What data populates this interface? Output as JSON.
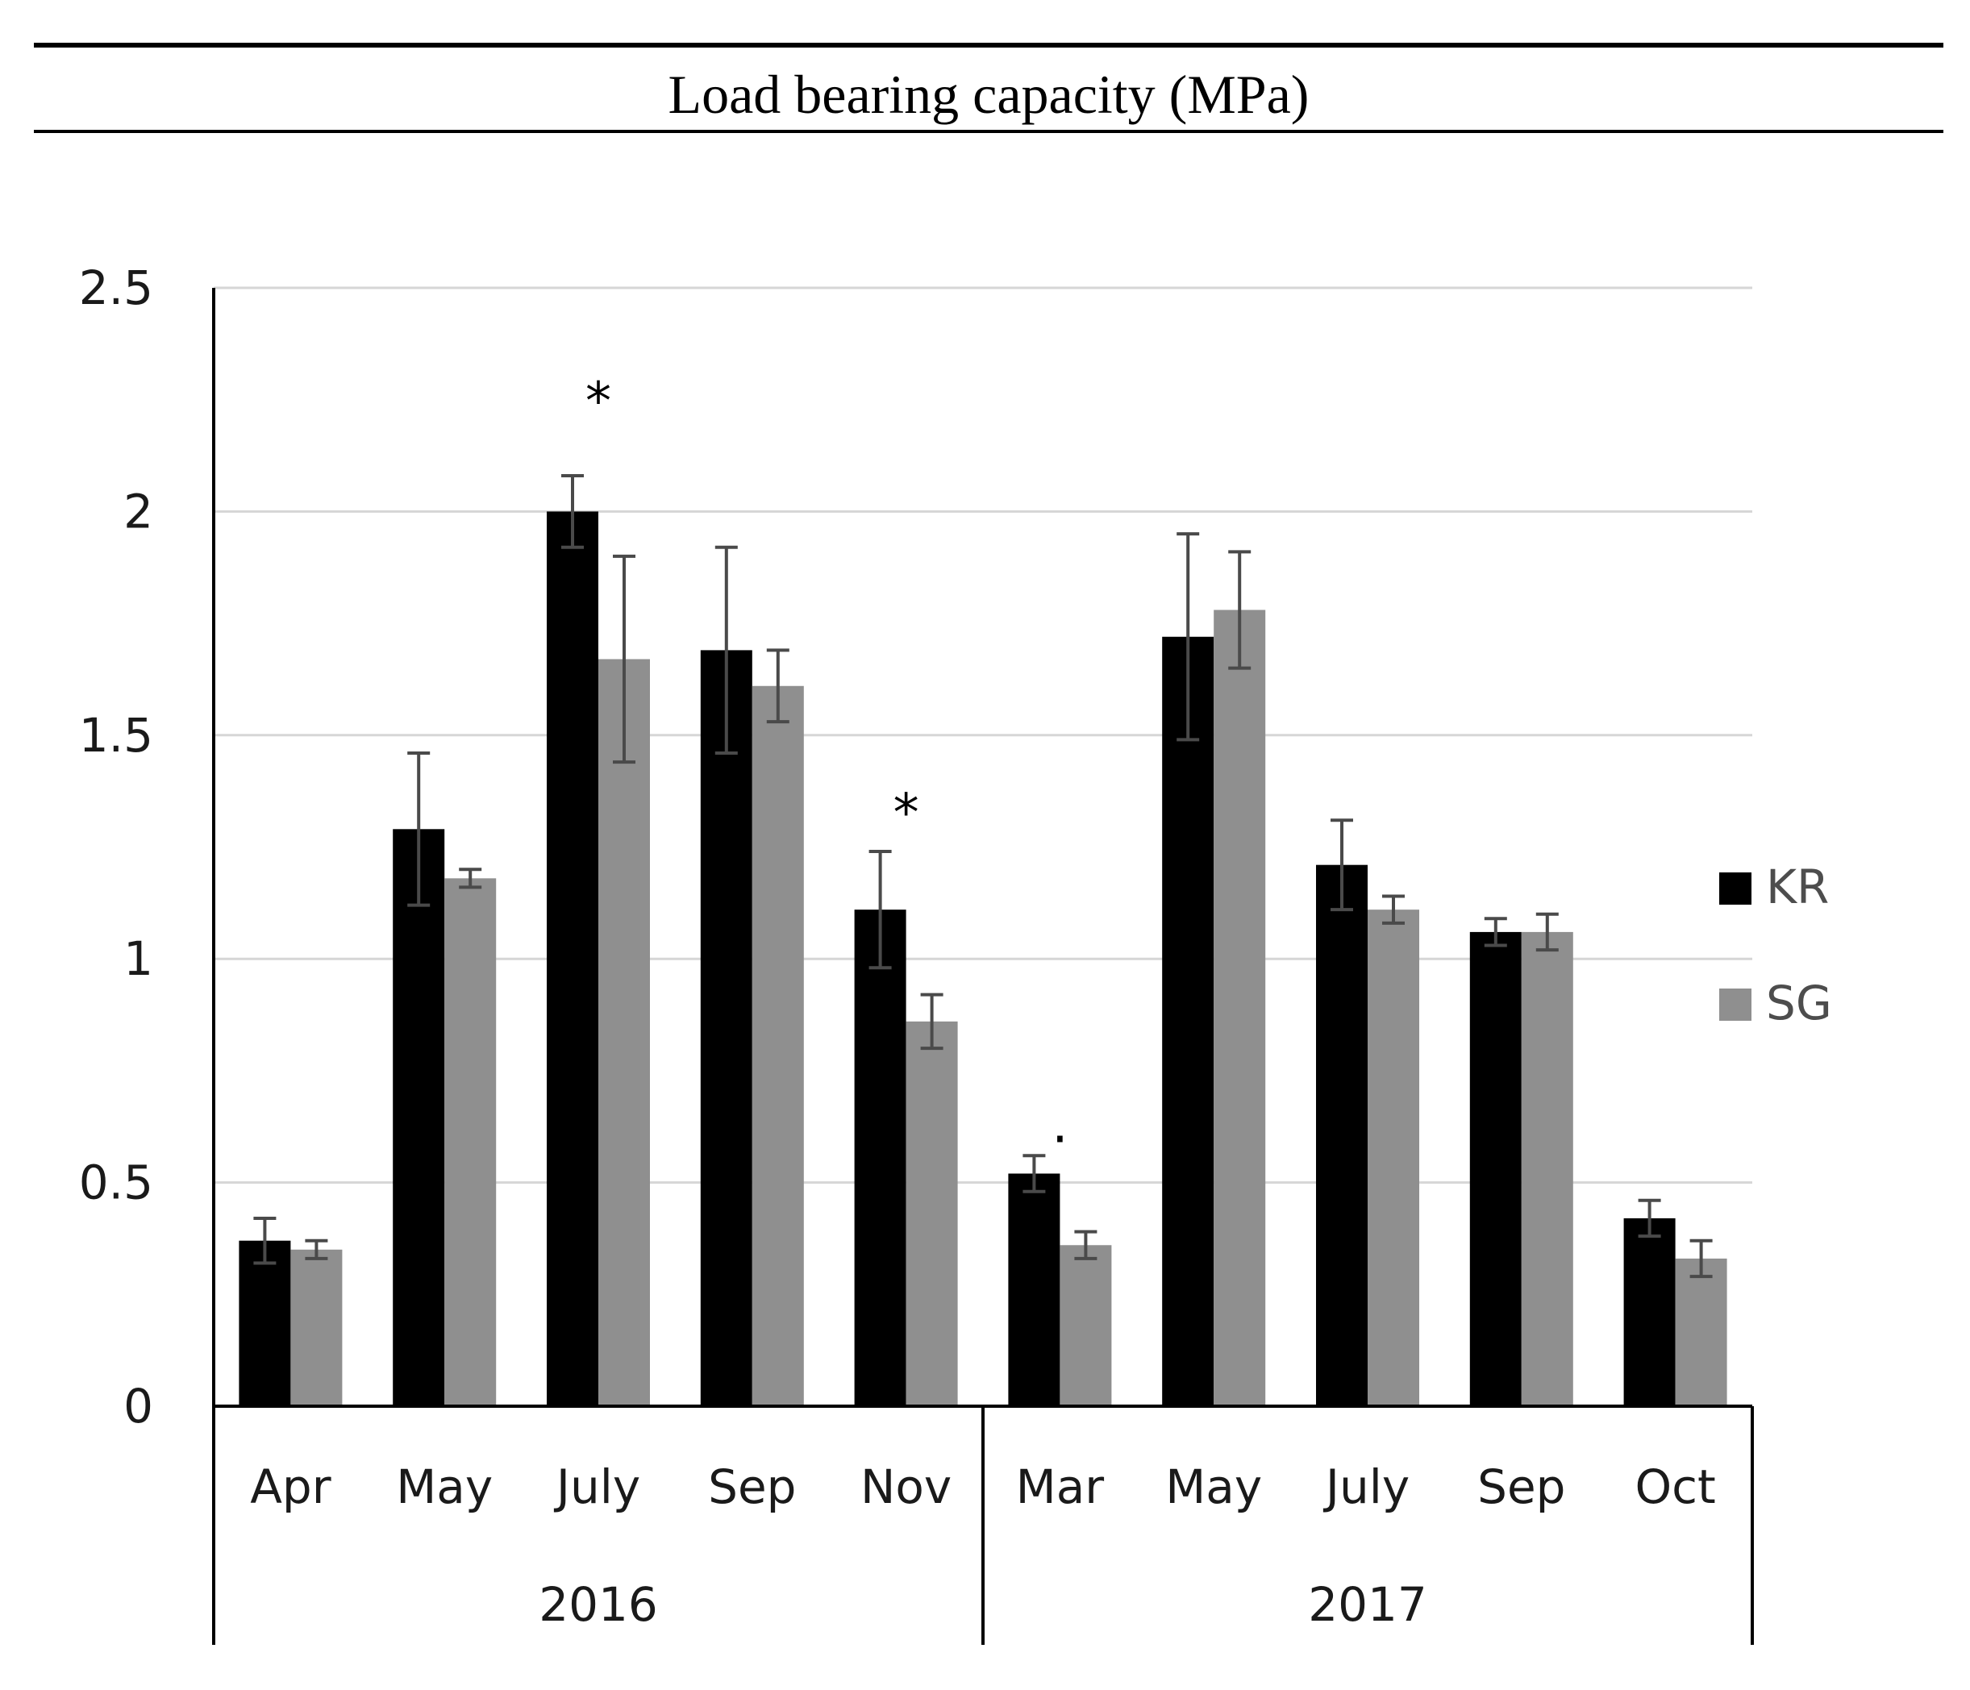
{
  "chart_data": {
    "type": "bar",
    "title": "Load bearing capacity (MPa)",
    "ylim": [
      0,
      2.5
    ],
    "yticks": [
      0,
      0.5,
      1,
      1.5,
      2,
      2.5
    ],
    "ytick_labels": [
      "0",
      "0.5",
      "1",
      "1.5",
      "2",
      "2.5"
    ],
    "grid": true,
    "categories": [
      "Apr",
      "May",
      "July",
      "Sep",
      "Nov",
      "Mar",
      "May",
      "July",
      "Sep",
      "Oct"
    ],
    "groups": [
      {
        "label": "2016",
        "count": 5
      },
      {
        "label": "2017",
        "count": 5
      }
    ],
    "series": [
      {
        "name": "KR",
        "color": "#000000",
        "values": [
          0.37,
          1.29,
          2.0,
          1.69,
          1.11,
          0.52,
          1.72,
          1.21,
          1.06,
          0.42
        ],
        "errors": [
          0.05,
          0.17,
          0.08,
          0.23,
          0.13,
          0.04,
          0.23,
          0.1,
          0.03,
          0.04
        ]
      },
      {
        "name": "SG",
        "color": "#8f8f8f",
        "values": [
          0.35,
          1.18,
          1.67,
          1.61,
          0.86,
          0.36,
          1.78,
          1.11,
          1.06,
          0.33
        ],
        "errors": [
          0.02,
          0.02,
          0.23,
          0.08,
          0.06,
          0.03,
          0.13,
          0.03,
          0.04,
          0.04
        ]
      }
    ],
    "annotations": [
      {
        "text": "*",
        "category_index": 2,
        "value": 2.25
      },
      {
        "text": "*",
        "category_index": 4,
        "value": 1.33
      },
      {
        "text": "·",
        "category_index": 5,
        "value": 0.6
      }
    ],
    "legend": "right"
  }
}
